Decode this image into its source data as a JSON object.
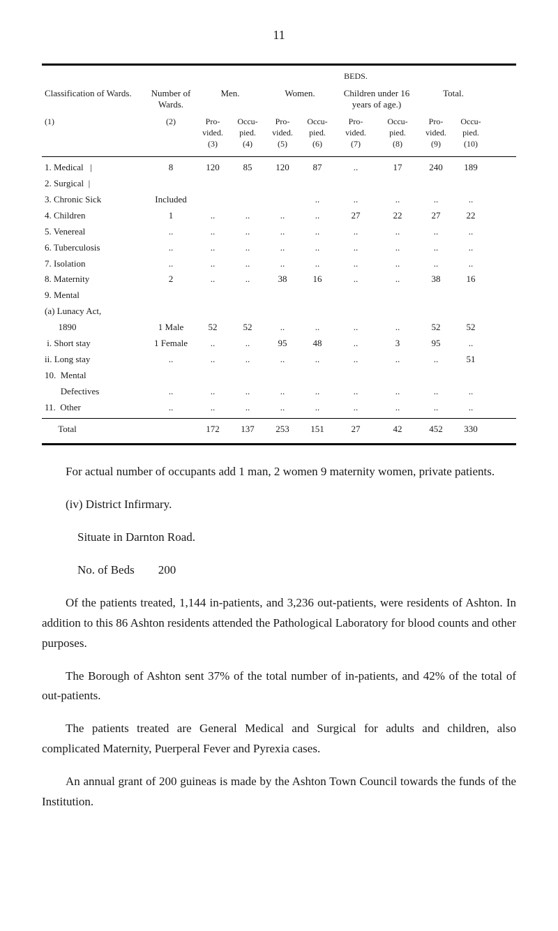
{
  "page_number": "11",
  "table": {
    "headers": {
      "classification": "Classification of Wards.",
      "number": "Number of Wards.",
      "men": "Men.",
      "beds": "BEDS.",
      "women": "Women.",
      "children": "Children under 16 years of age.)",
      "total": "Total."
    },
    "subheads": {
      "col1": "(1)",
      "col2": "(2)",
      "provided": "Pro-\nvided.",
      "occupied": "Occu-\npied.",
      "c3": "(3)",
      "c4": "(4)",
      "c5": "(5)",
      "c6": "(6)",
      "c7": "(7)",
      "c8": "(8)",
      "c9": "(9)",
      "c10": "(10)"
    },
    "rows": [
      {
        "label": "1. Medical   |",
        "num": "8",
        "men_p": "120",
        "men_o": "85",
        "wom_p": "120",
        "wom_o": "87",
        "ch_p": "..",
        "ch_o": "17",
        "tot_p": "240",
        "tot_o": "189",
        "extra": ""
      },
      {
        "label": "2. Surgical  |",
        "num": "",
        "men_p": "",
        "men_o": "",
        "wom_p": "",
        "wom_o": "",
        "ch_p": "",
        "ch_o": "",
        "tot_p": "",
        "tot_o": ""
      },
      {
        "label": "3. Chronic Sick",
        "num": "Included",
        "men_p": "",
        "men_o": "",
        "wom_p": "",
        "wom_o": "..",
        "ch_p": "..",
        "ch_o": "..",
        "tot_p": "..",
        "tot_o": ".."
      },
      {
        "label": "4. Children",
        "num": "1",
        "men_p": "..",
        "men_o": "..",
        "wom_p": "..",
        "wom_o": "..",
        "ch_p": "27",
        "ch_o": "22",
        "tot_p": "27",
        "tot_o": "22"
      },
      {
        "label": "5. Venereal",
        "num": "..",
        "men_p": "..",
        "men_o": "..",
        "wom_p": "..",
        "wom_o": "..",
        "ch_p": "..",
        "ch_o": "..",
        "tot_p": "..",
        "tot_o": ".."
      },
      {
        "label": "6. Tuberculosis",
        "num": "..",
        "men_p": "..",
        "men_o": "..",
        "wom_p": "..",
        "wom_o": "..",
        "ch_p": "..",
        "ch_o": "..",
        "tot_p": "..",
        "tot_o": ".."
      },
      {
        "label": "7. Isolation",
        "num": "..",
        "men_p": "..",
        "men_o": "..",
        "wom_p": "..",
        "wom_o": "..",
        "ch_p": "..",
        "ch_o": "..",
        "tot_p": "..",
        "tot_o": ".."
      },
      {
        "label": "8. Maternity",
        "num": "2",
        "men_p": "..",
        "men_o": "..",
        "wom_p": "38",
        "wom_o": "16",
        "ch_p": "..",
        "ch_o": "..",
        "tot_p": "38",
        "tot_o": "16"
      },
      {
        "label": "9. Mental",
        "num": "",
        "men_p": "",
        "men_o": "",
        "wom_p": "",
        "wom_o": "",
        "ch_p": "",
        "ch_o": "",
        "tot_p": "",
        "tot_o": ""
      },
      {
        "label": "(a) Lunacy Act,",
        "num": "",
        "men_p": "",
        "men_o": "",
        "wom_p": "",
        "wom_o": "",
        "ch_p": "",
        "ch_o": "",
        "tot_p": "",
        "tot_o": ""
      },
      {
        "label": "      1890",
        "num": "1 Male",
        "men_p": "52",
        "men_o": "52",
        "wom_p": "..",
        "wom_o": "..",
        "ch_p": "..",
        "ch_o": "..",
        "tot_p": "52",
        "tot_o": "52"
      },
      {
        "label": " i. Short stay",
        "num": "1 Female",
        "men_p": "..",
        "men_o": "..",
        "wom_p": "95",
        "wom_o": "48",
        "ch_p": "..",
        "ch_o": "3",
        "tot_p": "95",
        "tot_o": ".."
      },
      {
        "label": "ii. Long stay",
        "num": "..",
        "men_p": "..",
        "men_o": "..",
        "wom_p": "..",
        "wom_o": "..",
        "ch_p": "..",
        "ch_o": "..",
        "tot_p": "..",
        "tot_o": "51"
      },
      {
        "label": "10.  Mental",
        "num": "",
        "men_p": "",
        "men_o": "",
        "wom_p": "",
        "wom_o": "",
        "ch_p": "",
        "ch_o": "",
        "tot_p": "",
        "tot_o": ""
      },
      {
        "label": "       Defectives",
        "num": "..",
        "men_p": "..",
        "men_o": "..",
        "wom_p": "..",
        "wom_o": "..",
        "ch_p": "..",
        "ch_o": "..",
        "tot_p": "..",
        "tot_o": ".."
      },
      {
        "label": "11.  Other",
        "num": "..",
        "men_p": "..",
        "men_o": "..",
        "wom_p": "..",
        "wom_o": "..",
        "ch_p": "..",
        "ch_o": "..",
        "tot_p": "..",
        "tot_o": ".."
      }
    ],
    "total": {
      "label": "      Total",
      "num": "",
      "men_p": "172",
      "men_o": "137",
      "wom_p": "253",
      "wom_o": "151",
      "ch_p": "27",
      "ch_o": "42",
      "tot_p": "452",
      "tot_o": "330"
    }
  },
  "body": {
    "p1": "For actual number of occupants add 1 man, 2 women 9 maternity women, private patients.",
    "p2": "(iv)   District Infirmary.",
    "p3": "Situate in Darnton Road.",
    "p4": "No. of Beds        200",
    "p5": "Of the patients treated, 1,144 in-patients, and 3,236 out-patients, were residents of Ashton.     In addition to this 86 Ashton residents attended the Pathological Laboratory for blood counts and other purposes.",
    "p6": "The Borough of Ashton sent 37% of the total number of in-patients, and 42% of the total of out-patients.",
    "p7": "The patients treated are General Medical and Surgical for adults and children, also complicated Maternity, Puerperal Fever and Pyrexia cases.",
    "p8": "An annual grant of 200 guineas is made by the Ashton Town Council towards the funds of the Institution."
  }
}
